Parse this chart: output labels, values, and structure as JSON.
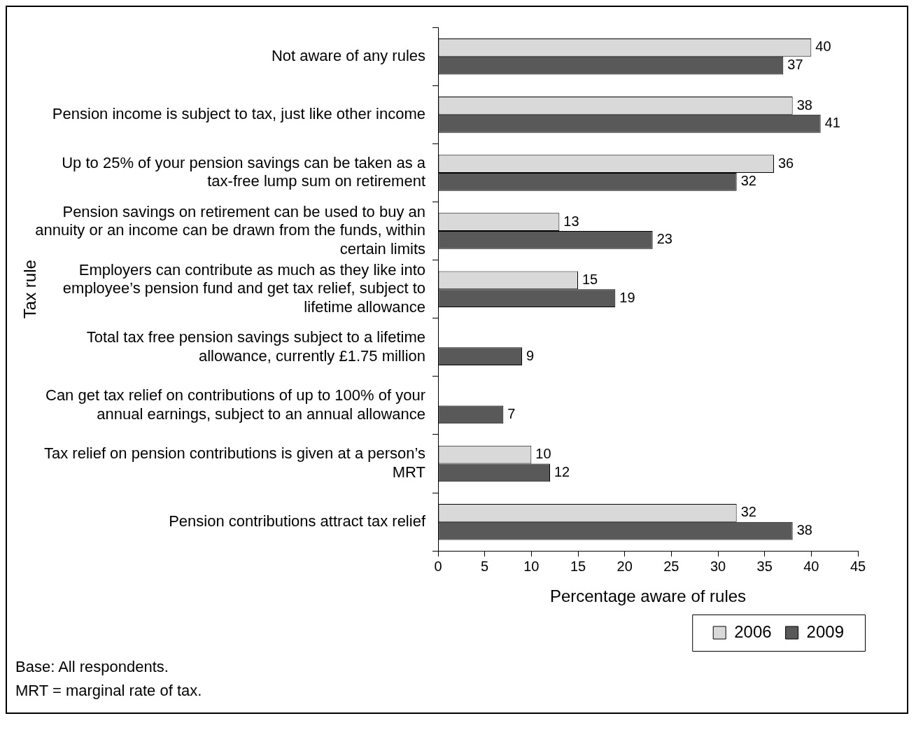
{
  "chart_data": {
    "type": "bar",
    "orientation": "horizontal",
    "xlabel": "Percentage aware of rules",
    "ylabel": "Tax rule",
    "categories": [
      "Not aware of any rules",
      "Pension income is subject to tax, just like other income",
      "Up to 25% of your pension savings can be taken as a tax-free lump sum on retirement",
      "Pension savings on retirement can be used to buy an annuity or an income can be drawn from the funds, within certain limits",
      "Employers can contribute as much as they like into employee’s pension fund and get tax relief, subject to lifetime allowance",
      "Total tax free pension savings subject to a lifetime allowance, currently £1.75 million",
      "Can get tax relief on contributions of up to 100% of your annual earnings, subject to an annual allowance",
      "Tax relief on pension contributions is given at a person’s MRT",
      "Pension contributions attract tax relief"
    ],
    "series": [
      {
        "name": "2006",
        "color": "#d9d9d9",
        "values": [
          40,
          38,
          36,
          13,
          15,
          null,
          null,
          10,
          32
        ]
      },
      {
        "name": "2009",
        "color": "#595959",
        "values": [
          37,
          41,
          32,
          23,
          19,
          9,
          7,
          12,
          38
        ]
      }
    ],
    "xlim": [
      0,
      45
    ],
    "xticks": [
      0,
      5,
      10,
      15,
      20,
      25,
      30,
      35,
      40,
      45
    ],
    "grid": false,
    "legend": "bottom right",
    "data_labels": true,
    "annotations": [
      "Base: All respondents.",
      "MRT = marginal rate of tax."
    ]
  }
}
